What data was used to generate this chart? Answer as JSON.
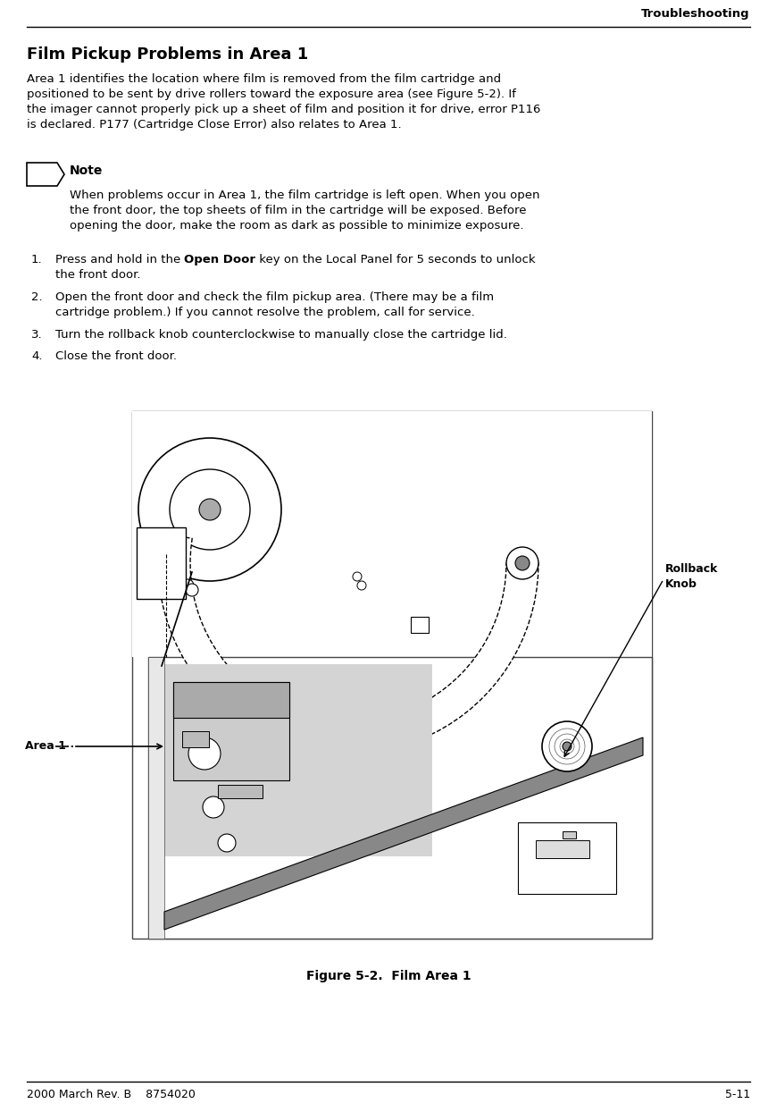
{
  "bg_color": "#ffffff",
  "header_text": "Troubleshooting",
  "title": "Film Pickup Problems in Area 1",
  "body_para": "Area 1 identifies the location where film is removed from the film cartridge and positioned to be sent by drive rollers toward the exposure area (see Figure 5-2). If the imager cannot properly pick up a sheet of film and position it for drive, error P116 is declared. P177 (Cartridge Close Error) also relates to Area 1.",
  "note_label": "Note",
  "note_text": "When problems occur in Area 1, the film cartridge is left open. When you open the front door, the top sheets of film in the cartridge will be exposed. Before opening the door, make the room as dark as possible to minimize exposure.",
  "step1_pre": "Press and hold in the ",
  "step1_bold": "Open Door",
  "step1_post": " key on the Local Panel for 5 seconds to unlock the front door.",
  "step2": "Open the front door and check the film pickup area. (There may be a film cartridge problem.) If you cannot resolve the problem, call for service.",
  "step3": "Turn the rollback knob counterclockwise to manually close the cartridge lid.",
  "step4": "Close the front door.",
  "figure_caption": "Figure 5-2.  Film Area 1",
  "footer_left": "2000 March Rev. B    8754020",
  "footer_right": "5-11",
  "rollback_label": "Rollback\nKnob",
  "area1_label": "Area 1"
}
